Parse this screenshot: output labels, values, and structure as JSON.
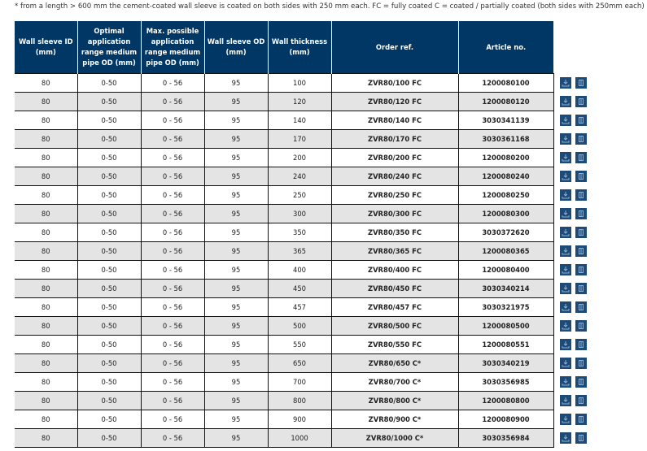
{
  "note": "* from a length > 600 mm the cement-coated wall sleeve is coated on both sides with 250 mm each. FC = fully coated C = coated / partially coated (both sides with 250mm each)",
  "colors": {
    "header": "#003764",
    "icon": "#1d4a77",
    "row_alt": "#e4e4e4"
  },
  "icons": [
    "download-icon",
    "datasheet-icon"
  ],
  "headers": [
    "Wall sleeve ID (mm)",
    "Optimal application range medium pipe OD (mm)",
    "Max. possible application range medium pipe OD (mm)",
    "Wall sleeve OD (mm)",
    "Wall thickness (mm)",
    "Order ref.",
    "Article no."
  ],
  "rows": [
    [
      "80",
      "0-50",
      "0 - 56",
      "95",
      "100",
      "ZVR80/100 FC",
      "1200080100"
    ],
    [
      "80",
      "0-50",
      "0 - 56",
      "95",
      "120",
      "ZVR80/120 FC",
      "1200080120"
    ],
    [
      "80",
      "0-50",
      "0 - 56",
      "95",
      "140",
      "ZVR80/140 FC",
      "3030341139"
    ],
    [
      "80",
      "0-50",
      "0 - 56",
      "95",
      "170",
      "ZVR80/170 FC",
      "3030361168"
    ],
    [
      "80",
      "0-50",
      "0 - 56",
      "95",
      "200",
      "ZVR80/200 FC",
      "1200080200"
    ],
    [
      "80",
      "0-50",
      "0 - 56",
      "95",
      "240",
      "ZVR80/240 FC",
      "1200080240"
    ],
    [
      "80",
      "0-50",
      "0 - 56",
      "95",
      "250",
      "ZVR80/250 FC",
      "1200080250"
    ],
    [
      "80",
      "0-50",
      "0 - 56",
      "95",
      "300",
      "ZVR80/300 FC",
      "1200080300"
    ],
    [
      "80",
      "0-50",
      "0 - 56",
      "95",
      "350",
      "ZVR80/350 FC",
      "3030372620"
    ],
    [
      "80",
      "0-50",
      "0 - 56",
      "95",
      "365",
      "ZVR80/365 FC",
      "1200080365"
    ],
    [
      "80",
      "0-50",
      "0 - 56",
      "95",
      "400",
      "ZVR80/400 FC",
      "1200080400"
    ],
    [
      "80",
      "0-50",
      "0 - 56",
      "95",
      "450",
      "ZVR80/450 FC",
      "3030340214"
    ],
    [
      "80",
      "0-50",
      "0 - 56",
      "95",
      "457",
      "ZVR80/457 FC",
      "3030321975"
    ],
    [
      "80",
      "0-50",
      "0 - 56",
      "95",
      "500",
      "ZVR80/500 FC",
      "1200080500"
    ],
    [
      "80",
      "0-50",
      "0 - 56",
      "95",
      "550",
      "ZVR80/550 FC",
      "1200080551"
    ],
    [
      "80",
      "0-50",
      "0 - 56",
      "95",
      "650",
      "ZVR80/650 C*",
      "3030340219"
    ],
    [
      "80",
      "0-50",
      "0 - 56",
      "95",
      "700",
      "ZVR80/700 C*",
      "3030356985"
    ],
    [
      "80",
      "0-50",
      "0 - 56",
      "95",
      "800",
      "ZVR80/800 C*",
      "1200080800"
    ],
    [
      "80",
      "0-50",
      "0 - 56",
      "95",
      "900",
      "ZVR80/900 C*",
      "1200080900"
    ],
    [
      "80",
      "0-50",
      "0 - 56",
      "95",
      "1000",
      "ZVR80/1000 C*",
      "3030356984"
    ]
  ]
}
